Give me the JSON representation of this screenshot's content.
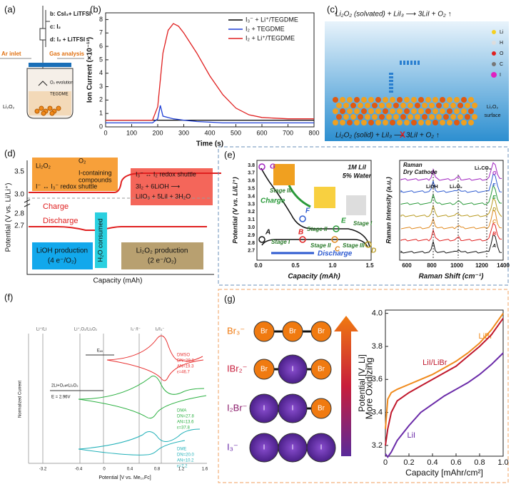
{
  "panels": {
    "a": {
      "label": "(a)",
      "lines": [
        "b:  CsI₃+ LiTFSI",
        "c:        I₂",
        "d:  I₂ + LiTFSI"
      ],
      "ar": "Ar inlet",
      "gas": "Gas analysis",
      "o2": "O₂ evolution",
      "solvent": "TEGDME",
      "solid": "Li₂O₂"
    },
    "b": {
      "label": "(b)"
    },
    "c": {
      "label": "(c)",
      "top": "Li₂O₂ (solvated) + LiI₃ ⟶ 3LiI + O₂ ↑",
      "bottom": "Li₂O₂ (solid) + LiI₃ ⟶ 3LiI + O₂ ↑",
      "cross": "X",
      "legend": [
        "Li",
        "H",
        "O",
        "C",
        "I"
      ],
      "surface": [
        "Li₂O₂",
        "surface"
      ]
    },
    "d": {
      "label": "(d)",
      "ylabel": "Potential (V vs. Li/Li⁺)",
      "yticks": [
        "3.5",
        "3.0",
        "2.8",
        "2.7"
      ],
      "xlabel": "Capacity (mAh)",
      "charge": "Charge",
      "discharge": "Discharge",
      "box1": [
        "Li₂O₂",
        "O₂",
        "I-containing",
        "compounds",
        "I⁻ ↔ I₃⁻ redox shuttle"
      ],
      "box2": [
        "I₃⁻ ↔ I₂ redox shuttle",
        "3I₂ + 6LiOH ⟶",
        "LiIO₃ + 5LiI + 3H₂O"
      ],
      "lioh": [
        "LiOH production",
        "(4 e⁻/O₂)"
      ],
      "water": "H₂O consumed",
      "li2o2": [
        "Li₂O₂ production",
        "(2 e⁻/O₂)"
      ]
    },
    "e": {
      "label": "(e)",
      "ylabel": "Potential (V vs. Li/Li⁺)",
      "yticks": [
        "3.8",
        "3.7",
        "3.6",
        "3.5",
        "3.4",
        "3.3",
        "3.2",
        "3.1",
        "3.0",
        "2.9",
        "2.8",
        "2.7"
      ],
      "xticks": [
        "0.0",
        "0.5",
        "1.0",
        "1.5"
      ],
      "xlabel": "Capacity (mAh)",
      "note": [
        "1M LiI",
        "5% Water"
      ],
      "points": [
        "A",
        "B",
        "C",
        "D",
        "E",
        "F",
        "G"
      ],
      "stages": [
        "Stage I",
        "Stage II",
        "Stage III",
        "Stage I",
        "Stage II",
        "Stage III"
      ],
      "charge": "Charge",
      "discharge": "Discharge",
      "raman_title": [
        "Raman",
        "Dry Cathode"
      ],
      "peaks": [
        "LiOH",
        "Li₂O₂",
        "Li₂CO₃"
      ],
      "raman_xticks": [
        "600",
        "800",
        "1000",
        "1200",
        "1400"
      ],
      "raman_xlabel": "Raman Shift (cm⁻¹)",
      "raman_ylabel": "Raman Intensity (a.u.)"
    },
    "f": {
      "label": "(f)",
      "couples": [
        "Li⁺/Li",
        "Li⁺,O₂/Li₂O₂",
        "I₃⁻/I⁻",
        "I₂/I₃⁻"
      ],
      "eox": "Eₒₓ",
      "dmso": [
        "DMSO",
        "DN=29.8",
        "AN=19.3",
        "ε=46.7"
      ],
      "dma": [
        "DMA",
        "DN=27.8",
        "AN=13.6",
        "ε=37.8"
      ],
      "dme": [
        "DME",
        "DN=20.0",
        "AN=10.2",
        "ε=7.2"
      ],
      "reaction": [
        "2Li+O₂⇌Li₂O₂",
        "E = 2.96V"
      ],
      "xticks": [
        "-3.2",
        "-0.4",
        "0",
        "0.4",
        "0.8",
        "1.2",
        "1.6"
      ],
      "xlabel": "Potential [V vs. Me₁₀Fc]",
      "ylabel": "Normalized Current"
    },
    "g": {
      "label": "(g)",
      "ions": [
        "Br₃⁻",
        "IBr₂⁻",
        "I₂Br⁻",
        "I₃⁻"
      ],
      "atoms": [
        "Br",
        "I"
      ],
      "arrow": "More Oxidizing"
    }
  },
  "chart_data": [
    {
      "type": "line",
      "xlabel": "Time (s)",
      "ylabel": "Ion Current (×10⁻¹³)",
      "x": [
        0,
        100,
        180,
        200,
        210,
        220,
        240,
        260,
        280,
        300,
        350,
        400,
        450,
        500,
        550,
        600,
        700,
        800
      ],
      "series": [
        {
          "name": "I₃⁻ + Li⁺/TEGDME",
          "color": "#000000",
          "values": [
            0.5,
            0.5,
            0.5,
            0.5,
            0.5,
            0.5,
            0.5,
            0.5,
            0.5,
            0.5,
            0.5,
            0.5,
            0.5,
            0.5,
            0.5,
            0.5,
            0.5,
            0.5
          ]
        },
        {
          "name": "I₂ + TEGDME",
          "color": "#1f3fd6",
          "values": [
            0.3,
            0.3,
            0.3,
            0.6,
            1.6,
            0.8,
            0.7,
            0.6,
            0.55,
            0.5,
            0.4,
            0.35,
            0.3,
            0.3,
            0.3,
            0.3,
            0.3,
            0.3
          ]
        },
        {
          "name": "I₂ + Li⁺/TEGDME",
          "color": "#e02020",
          "values": [
            0.5,
            0.5,
            0.5,
            1.5,
            3.5,
            5.5,
            7.2,
            7.7,
            7.5,
            7.0,
            5.5,
            3.8,
            2.4,
            1.4,
            0.9,
            0.7,
            0.6,
            0.6
          ]
        }
      ],
      "xlim": [
        0,
        800
      ],
      "xticks": [
        0,
        100,
        200,
        300,
        400,
        500,
        600,
        700,
        800
      ],
      "ylim": [
        0,
        8.5
      ],
      "yticks": [
        0,
        1,
        2,
        3,
        4,
        5,
        6,
        7,
        8
      ],
      "legend": "upper right"
    },
    {
      "type": "line",
      "xlabel": "Capacity [mAhr/cm²]",
      "ylabel": "Potential [V_Li]",
      "x": [
        0,
        0.02,
        0.05,
        0.1,
        0.2,
        0.3,
        0.4,
        0.5,
        0.6,
        0.7,
        0.8,
        0.9,
        1.0
      ],
      "series": [
        {
          "name": "LiBr",
          "color": "#f08a1c",
          "values": [
            3.3,
            3.48,
            3.52,
            3.54,
            3.57,
            3.6,
            3.63,
            3.67,
            3.71,
            3.76,
            3.82,
            3.9,
            4.0
          ]
        },
        {
          "name": "LiI/LiBr",
          "color": "#c0182c",
          "values": [
            3.2,
            3.3,
            3.4,
            3.47,
            3.52,
            3.56,
            3.6,
            3.64,
            3.68,
            3.74,
            3.8,
            3.87,
            3.97
          ]
        },
        {
          "name": "LiI",
          "color": "#6a2aa8",
          "values": [
            3.15,
            3.13,
            3.16,
            3.23,
            3.32,
            3.4,
            3.45,
            3.5,
            3.54,
            3.58,
            3.63,
            3.69,
            3.76
          ]
        }
      ],
      "xlim": [
        0,
        1
      ],
      "xticks": [
        0,
        0.2,
        0.4,
        0.6,
        0.8,
        {
          "value": 1,
          "label": "1.0"
        }
      ],
      "ylim": [
        3.135,
        4.02
      ],
      "yticks": [
        3.2,
        3.4,
        3.6,
        3.8,
        {
          "value": 4,
          "label": "4.0"
        }
      ],
      "legend": "inline"
    }
  ]
}
